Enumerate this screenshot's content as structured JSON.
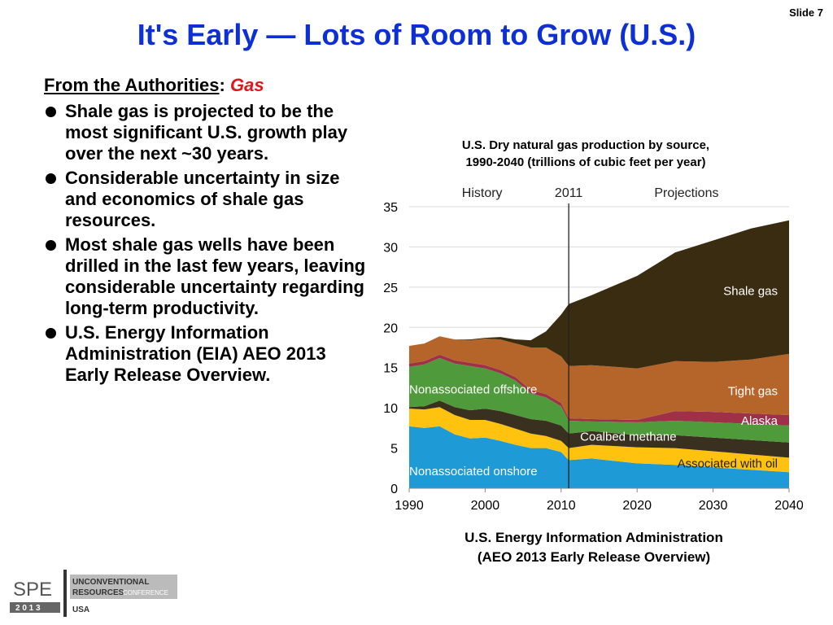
{
  "slide_number": "Slide 7",
  "title": "It's Early — Lots of Room to Grow (U.S.)",
  "left": {
    "heading_main": "From the Authorities",
    "heading_sep": ":",
    "heading_accent": "Gas",
    "bullets": [
      "Shale gas is projected to be the most significant U.S. growth play over the next ~30 years.",
      "Considerable uncertainty in size and economics of shale gas resources.",
      "Most shale gas wells have been drilled in the last few years, leaving considerable uncertainty regarding long-term productivity.",
      "U.S. Energy Information Administration (EIA) AEO 2013 Early Release Overview."
    ]
  },
  "chart_caption": {
    "line1": "U.S. Dry natural gas production by source,",
    "line2": "1990-2040 (trillions of cubic feet per year)"
  },
  "source": {
    "line1": "U.S. Energy Information Administration",
    "line2": "(AEO 2013 Early Release Overview)"
  },
  "logo": {
    "spe": "SPE",
    "year": "2 0 1 3",
    "line1": "UNCONVENTIONAL",
    "line2": "RESOURCES",
    "line2b": "CONFERENCE",
    "line3": "USA"
  },
  "colors": {
    "shale": "#3a2c10",
    "tight": "#b5652a",
    "alaska": "#a03048",
    "offshore": "#4f9a3a",
    "coalbed": "#3a3020",
    "assoc": "#ffc20e",
    "onshore": "#1e9ad6"
  },
  "chart_data": {
    "type": "area",
    "stacked": true,
    "x": [
      1990,
      1992,
      1994,
      1996,
      1998,
      2000,
      2002,
      2004,
      2006,
      2008,
      2010,
      2011,
      2014,
      2020,
      2025,
      2030,
      2035,
      2040
    ],
    "series": [
      {
        "name": "Nonassociated onshore",
        "color_key": "onshore",
        "values": [
          7.7,
          7.5,
          7.7,
          6.7,
          6.2,
          6.3,
          5.9,
          5.4,
          5.0,
          5.0,
          4.5,
          3.5,
          3.7,
          3.1,
          2.9,
          2.6,
          2.3,
          2.0
        ]
      },
      {
        "name": "Associated with oil",
        "color_key": "assoc",
        "values": [
          2.2,
          2.3,
          2.4,
          2.4,
          2.3,
          2.2,
          2.1,
          2.0,
          1.8,
          1.5,
          1.4,
          1.5,
          1.7,
          2.0,
          2.1,
          2.0,
          1.9,
          1.8
        ]
      },
      {
        "name": "Coalbed methane",
        "color_key": "coalbed",
        "values": [
          0.2,
          0.4,
          0.8,
          1.0,
          1.2,
          1.4,
          1.6,
          1.7,
          1.8,
          1.9,
          1.9,
          1.8,
          1.7,
          1.5,
          1.6,
          1.7,
          1.8,
          1.9
        ]
      },
      {
        "name": "Nonassociated offshore",
        "color_key": "offshore",
        "values": [
          5.0,
          5.2,
          5.3,
          5.4,
          5.5,
          5.0,
          4.7,
          4.3,
          3.2,
          2.9,
          2.4,
          1.6,
          1.2,
          1.6,
          1.8,
          1.9,
          2.0,
          2.1
        ]
      },
      {
        "name": "Alaska",
        "color_key": "alaska",
        "values": [
          0.4,
          0.4,
          0.4,
          0.4,
          0.4,
          0.4,
          0.4,
          0.4,
          0.4,
          0.4,
          0.4,
          0.3,
          0.3,
          0.3,
          1.2,
          1.3,
          1.3,
          1.3
        ]
      },
      {
        "name": "Tight gas",
        "color_key": "tight",
        "values": [
          2.2,
          2.2,
          2.3,
          2.6,
          2.8,
          3.3,
          3.8,
          4.2,
          5.3,
          5.8,
          5.8,
          6.5,
          6.7,
          6.4,
          6.2,
          6.2,
          6.7,
          7.6
        ]
      },
      {
        "name": "Shale gas",
        "color_key": "shale",
        "values": [
          0.0,
          0.0,
          0.0,
          0.0,
          0.1,
          0.1,
          0.3,
          0.5,
          0.9,
          2.0,
          5.2,
          7.7,
          8.7,
          11.5,
          13.5,
          15.1,
          16.3,
          16.6
        ]
      }
    ],
    "xlim": [
      1990,
      2040
    ],
    "ylim": [
      0,
      35
    ],
    "x_ticks": [
      1990,
      2000,
      2010,
      2020,
      2030,
      2040
    ],
    "y_ticks": [
      0,
      5,
      10,
      15,
      20,
      25,
      30,
      35
    ],
    "markers": {
      "history_label": "History",
      "divider_year": 2011,
      "divider_label": "2011",
      "projections_label": "Projections"
    },
    "grid": "horizontal",
    "legend": "inline labels on areas"
  }
}
